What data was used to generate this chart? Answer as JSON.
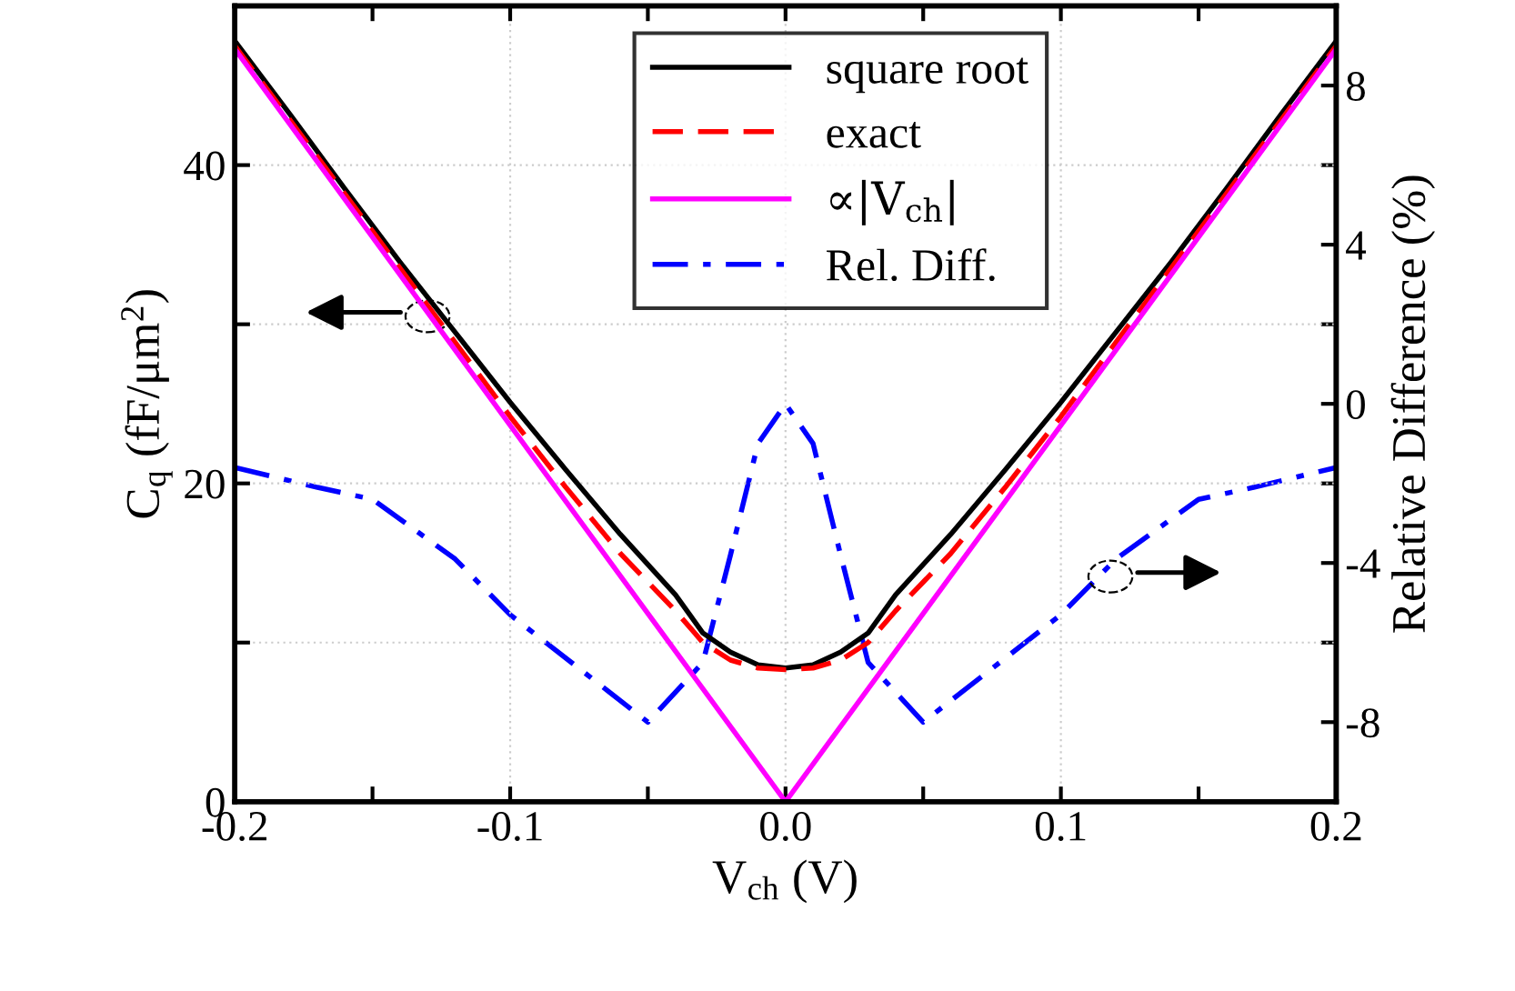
{
  "chart_data": {
    "type": "line",
    "xlabel": "V$_{ch}$ (V)",
    "ylabel": "C$_{q}$ (fF/μm$^{2}$)",
    "y2label": "Relative Difference (%)",
    "xlim": [
      -0.2,
      0.2
    ],
    "xticks": [
      -0.2,
      {
        "value": -0.15,
        "label": null
      },
      -0.1,
      {
        "value": -0.05,
        "label": null
      },
      {
        "value": 0,
        "label": "0.0"
      },
      {
        "value": 0.05,
        "label": null
      },
      0.1,
      {
        "value": 0.15,
        "label": null
      },
      0.2
    ],
    "ylim": [
      0,
      50
    ],
    "yticks": [
      0,
      {
        "value": 10,
        "label": null
      },
      20,
      {
        "value": 30,
        "label": null
      },
      40
    ],
    "y2lim": [
      -10,
      10
    ],
    "y2ticks": [
      {
        "value": -10,
        "label": null
      },
      -8,
      {
        "value": -6,
        "label": null
      },
      -4,
      {
        "value": -2,
        "label": null
      },
      0,
      {
        "value": 2,
        "label": null
      },
      4,
      {
        "value": 6,
        "label": null
      },
      8,
      {
        "value": 10,
        "label": null
      }
    ],
    "grid": true,
    "legend": "top",
    "series": [
      {
        "name": "square root",
        "color": "#000000",
        "line_style": "solid",
        "x": [
          -0.2,
          -0.18,
          -0.16,
          -0.14,
          -0.12,
          -0.1,
          -0.08,
          -0.06,
          -0.05,
          -0.04,
          -0.03,
          -0.02,
          -0.01,
          0,
          0.01,
          0.02,
          0.03,
          0.04,
          0.05,
          0.06,
          0.08,
          0.1,
          0.12,
          0.14,
          0.16,
          0.18,
          0.2
        ],
        "values": [
          47.8,
          43.2,
          38.5,
          33.9,
          29.5,
          25.1,
          20.9,
          16.8,
          14.9,
          13.0,
          10.6,
          9.4,
          8.6,
          8.4,
          8.6,
          9.4,
          10.6,
          13.0,
          14.9,
          16.8,
          20.9,
          25.1,
          29.5,
          33.9,
          38.5,
          43.2,
          47.8
        ]
      },
      {
        "name": "exact",
        "color": "#ff0000",
        "line_style": "dashed",
        "x": [
          -0.2,
          -0.1,
          -0.08,
          -0.06,
          -0.05,
          -0.04,
          -0.03,
          -0.02,
          -0.01,
          0,
          0.01,
          0.02,
          0.03,
          0.04,
          0.05,
          0.06,
          0.08,
          0.1,
          0.2
        ],
        "values": [
          47.5,
          24.2,
          19.8,
          15.6,
          13.8,
          12.0,
          10.0,
          8.9,
          8.4,
          8.3,
          8.4,
          8.9,
          10.0,
          12.0,
          13.8,
          15.6,
          19.8,
          24.2,
          47.5
        ]
      },
      {
        "name": "∝|V$_{ch}$|",
        "color": "#ff00ff",
        "line_style": "solid",
        "x": [
          -0.2,
          0,
          0.2
        ],
        "values": [
          47.3,
          0,
          47.3
        ]
      },
      {
        "name": "Rel. Diff.",
        "color": "#0000ff",
        "line_style": "dashdot",
        "axis": "y2",
        "x": [
          -0.2,
          -0.17,
          -0.15,
          -0.12,
          -0.1,
          -0.05,
          -0.03,
          -0.02,
          -0.01,
          0,
          0.01,
          0.02,
          0.03,
          0.05,
          0.1,
          0.12,
          0.15,
          0.17,
          0.2
        ],
        "values": [
          -1.6,
          -2.1,
          -2.4,
          -3.9,
          -5.3,
          -8.0,
          -6.5,
          -3.8,
          -1.0,
          0,
          -1.0,
          -3.8,
          -6.5,
          -8.0,
          -5.3,
          -3.9,
          -2.4,
          -2.1,
          -1.6
        ]
      }
    ]
  }
}
